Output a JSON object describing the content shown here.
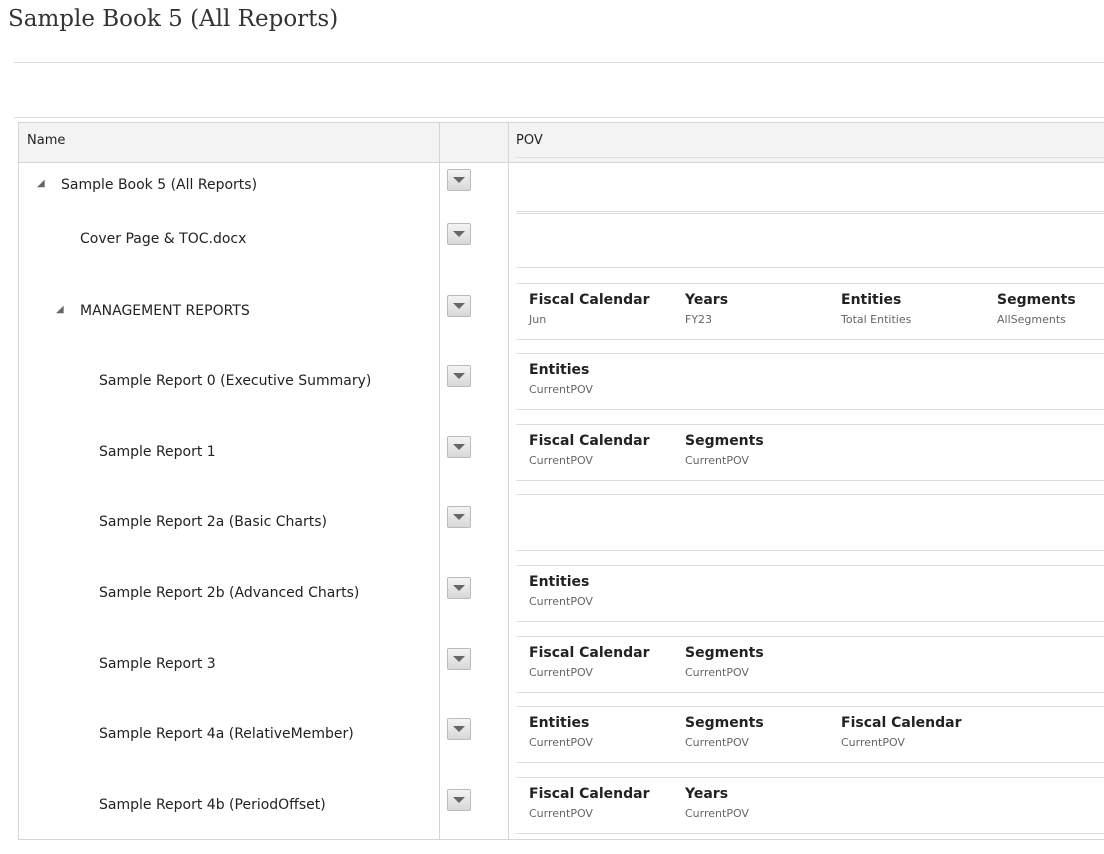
{
  "header": {
    "title": "Sample Book 5 (All Reports)"
  },
  "table": {
    "columns": [
      "Name",
      "POV"
    ],
    "rows": [
      {
        "name": "Sample Book 5 (All Reports)",
        "pov": []
      },
      {
        "name": "Cover Page & TOC.docx",
        "pov": []
      },
      {
        "name": "MANAGEMENT REPORTS",
        "pov": [
          {
            "dimension": "Fiscal Calendar",
            "member": "Jun"
          },
          {
            "dimension": "Years",
            "member": "FY23"
          },
          {
            "dimension": "Entities",
            "member": "Total Entities"
          },
          {
            "dimension": "Segments",
            "member": "AllSegments"
          }
        ]
      },
      {
        "name": "Sample Report 0 (Executive Summary)",
        "pov": [
          {
            "dimension": "Entities",
            "member": "CurrentPOV"
          }
        ]
      },
      {
        "name": "Sample Report 1",
        "pov": [
          {
            "dimension": "Fiscal Calendar",
            "member": "CurrentPOV"
          },
          {
            "dimension": "Segments",
            "member": "CurrentPOV"
          }
        ]
      },
      {
        "name": "Sample Report 2a (Basic Charts)",
        "pov": []
      },
      {
        "name": "Sample Report 2b (Advanced Charts)",
        "pov": [
          {
            "dimension": "Entities",
            "member": "CurrentPOV"
          }
        ]
      },
      {
        "name": "Sample Report 3",
        "pov": [
          {
            "dimension": "Fiscal Calendar",
            "member": "CurrentPOV"
          },
          {
            "dimension": "Segments",
            "member": "CurrentPOV"
          }
        ]
      },
      {
        "name": "Sample Report 4a (RelativeMember)",
        "pov": [
          {
            "dimension": "Entities",
            "member": "CurrentPOV"
          },
          {
            "dimension": "Segments",
            "member": "CurrentPOV"
          },
          {
            "dimension": "Fiscal Calendar",
            "member": "CurrentPOV"
          }
        ]
      },
      {
        "name": "Sample Report 4b (PeriodOffset)",
        "pov": [
          {
            "dimension": "Fiscal Calendar",
            "member": "CurrentPOV"
          },
          {
            "dimension": "Years",
            "member": "CurrentPOV"
          }
        ]
      }
    ]
  }
}
